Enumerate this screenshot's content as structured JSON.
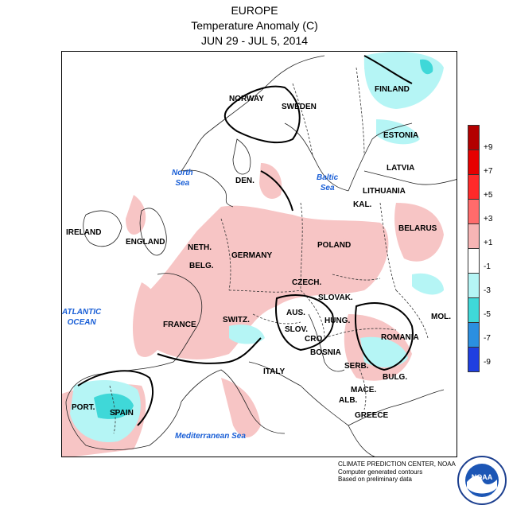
{
  "title": {
    "line1": "EUROPE",
    "line2": "Temperature Anomaly (C)",
    "line3": "JUN 29 - JUL 5, 2014"
  },
  "countries": [
    {
      "label": "NORWAY"
    },
    {
      "label": "SWEDEN"
    },
    {
      "label": "FINLAND"
    },
    {
      "label": "ESTONIA"
    },
    {
      "label": "LATVIA"
    },
    {
      "label": "LITHUANIA"
    },
    {
      "label": "DEN."
    },
    {
      "label": "KAL."
    },
    {
      "label": "BELARUS"
    },
    {
      "label": "IRELAND"
    },
    {
      "label": "ENGLAND"
    },
    {
      "label": "NETH."
    },
    {
      "label": "BELG."
    },
    {
      "label": "GERMANY"
    },
    {
      "label": "POLAND"
    },
    {
      "label": "CZECH."
    },
    {
      "label": "SLOVAK."
    },
    {
      "label": "FRANCE"
    },
    {
      "label": "SWITZ."
    },
    {
      "label": "AUS."
    },
    {
      "label": "HUNG."
    },
    {
      "label": "SLOV."
    },
    {
      "label": "CRO."
    },
    {
      "label": "ROMANIA"
    },
    {
      "label": "MOL."
    },
    {
      "label": "BOSNIA"
    },
    {
      "label": "SERB."
    },
    {
      "label": "BULG."
    },
    {
      "label": "ITALY"
    },
    {
      "label": "MACE."
    },
    {
      "label": "ALB."
    },
    {
      "label": "GREECE"
    },
    {
      "label": "PORT."
    },
    {
      "label": "SPAIN"
    }
  ],
  "seas": {
    "north": [
      "North",
      "Sea"
    ],
    "baltic": [
      "Baltic",
      "Sea"
    ],
    "atlantic": [
      "ATLANTIC",
      "OCEAN"
    ],
    "mediterranean": "Mediterranean Sea"
  },
  "legend": {
    "ticks": [
      "+9",
      "+7",
      "+5",
      "+3",
      "+1",
      "-1",
      "-3",
      "-5",
      "-7",
      "-9"
    ],
    "colors": [
      "#b30000",
      "#e60000",
      "#ff2a2a",
      "#ff6b6b",
      "#f7b5b5",
      "#ffffff",
      "#b5f5f5",
      "#3fd8d8",
      "#2b8fe0",
      "#1f3fe0",
      "#0010e0"
    ]
  },
  "credits": {
    "line1": "CLIMATE PREDICTION CENTER, NOAA",
    "line2": "Computer generated contours",
    "line3": "Based on preliminary data"
  },
  "logo": {
    "text": "NOAA",
    "icon": "noaa-logo"
  }
}
